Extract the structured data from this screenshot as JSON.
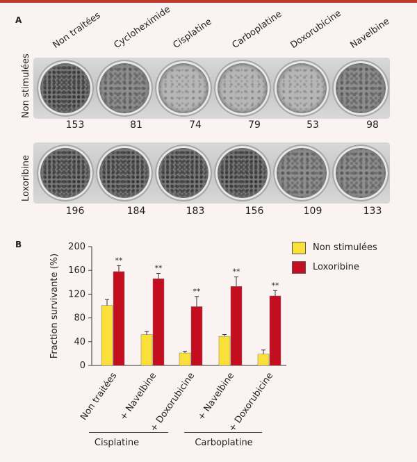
{
  "panel_a": {
    "letter": "A",
    "columns": [
      "Non traitées",
      "Cycloheximide",
      "Cisplatine",
      "Carboplatine",
      "Doxorubicine",
      "Navelbine"
    ],
    "rows": [
      {
        "label": "Non stimulées",
        "counts": [
          "153",
          "81",
          "74",
          "79",
          "53",
          "98"
        ]
      },
      {
        "label": "Loxoribine",
        "counts": [
          "196",
          "184",
          "183",
          "156",
          "109",
          "133"
        ]
      }
    ]
  },
  "panel_b": {
    "letter": "B"
  },
  "colors": {
    "yellow": "#fce03a",
    "red": "#c40d1e",
    "accent": "#c0392b"
  },
  "chart_data": {
    "type": "bar",
    "ylabel": "Fraction survivante (%)",
    "ylim": [
      0,
      200
    ],
    "yticks": [
      0,
      40,
      80,
      120,
      160,
      200
    ],
    "categories": [
      "Non traitées",
      "+ Navelbine",
      "+ Doxorubicine",
      "+ Navelbine",
      "+ Doxorubicine"
    ],
    "groups": [
      {
        "label": "Cisplatine",
        "categories": [
          1,
          2
        ]
      },
      {
        "label": "Carboplatine",
        "categories": [
          3,
          4
        ]
      }
    ],
    "series": [
      {
        "name": "Non stimulées",
        "color": "#fce03a",
        "values": [
          101,
          52,
          21,
          49,
          19
        ],
        "errors": [
          10,
          5,
          3,
          3,
          7
        ]
      },
      {
        "name": "Loxoribine",
        "color": "#c40d1e",
        "values": [
          158,
          146,
          99,
          133,
          117
        ],
        "errors": [
          10,
          9,
          17,
          16,
          9
        ]
      }
    ],
    "annotations": [
      "**",
      "**",
      "**",
      "**",
      "**"
    ]
  }
}
